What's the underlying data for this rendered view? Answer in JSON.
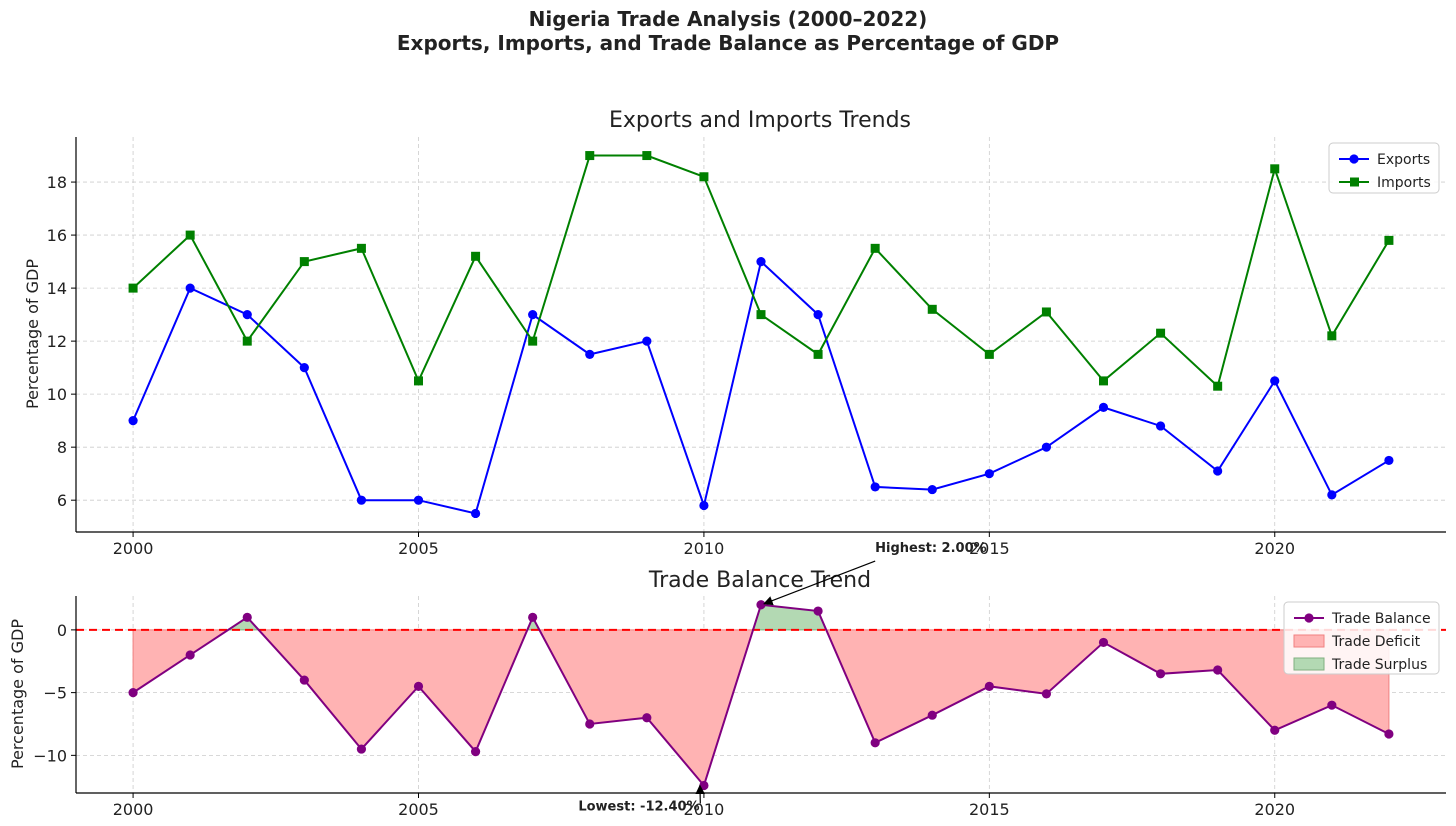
{
  "figure": {
    "title_line1": "Nigeria Trade Analysis (2000–2022)",
    "title_line2": "Exports, Imports, and Trade Balance as Percentage of GDP"
  },
  "chart_data": [
    {
      "type": "line",
      "title": "Exports and Imports Trends",
      "xlabel": "",
      "ylabel": "Percentage of GDP",
      "x": [
        2000,
        2001,
        2002,
        2003,
        2004,
        2005,
        2006,
        2007,
        2008,
        2009,
        2010,
        2011,
        2012,
        2013,
        2014,
        2015,
        2016,
        2017,
        2018,
        2019,
        2020,
        2021,
        2022
      ],
      "xlim": [
        1999,
        2023
      ],
      "ylim": [
        4.8,
        19.7
      ],
      "xticks": [
        2000,
        2005,
        2010,
        2015,
        2020
      ],
      "yticks": [
        6,
        8,
        10,
        12,
        14,
        16,
        18
      ],
      "grid": true,
      "legend_position": "top-right",
      "series": [
        {
          "name": "Exports",
          "color": "#0000ff",
          "marker": "circle",
          "values": [
            9.0,
            14.0,
            13.0,
            11.0,
            6.0,
            6.0,
            5.5,
            13.0,
            11.5,
            12.0,
            5.8,
            15.0,
            13.0,
            6.5,
            6.4,
            7.0,
            8.0,
            9.5,
            8.8,
            7.1,
            10.5,
            6.2,
            7.5
          ]
        },
        {
          "name": "Imports",
          "color": "#008000",
          "marker": "square",
          "values": [
            14.0,
            16.0,
            12.0,
            15.0,
            15.5,
            10.5,
            15.2,
            12.0,
            19.0,
            19.0,
            18.2,
            13.0,
            11.5,
            15.5,
            13.2,
            11.5,
            13.1,
            10.5,
            12.3,
            10.3,
            18.5,
            12.2,
            15.8
          ]
        }
      ]
    },
    {
      "type": "area",
      "title": "Trade Balance Trend",
      "xlabel": "",
      "ylabel": "Percentage of GDP",
      "x": [
        2000,
        2001,
        2002,
        2003,
        2004,
        2005,
        2006,
        2007,
        2008,
        2009,
        2010,
        2011,
        2012,
        2013,
        2014,
        2015,
        2016,
        2017,
        2018,
        2019,
        2020,
        2021,
        2022
      ],
      "xlim": [
        1999,
        2023
      ],
      "ylim": [
        -13.0,
        2.7
      ],
      "xticks": [
        2000,
        2005,
        2010,
        2015,
        2020
      ],
      "yticks": [
        0,
        -5,
        -10
      ],
      "ytick_labels": [
        "0",
        "−5",
        "−10"
      ],
      "grid": true,
      "legend_position": "top-right",
      "reference_line": {
        "y": 0,
        "color": "#ff0000",
        "style": "dashed"
      },
      "series": [
        {
          "name": "Trade Balance",
          "color": "#800080",
          "marker": "circle",
          "values": [
            -5.0,
            -2.0,
            1.0,
            -4.0,
            -9.5,
            -4.5,
            -9.7,
            1.0,
            -7.5,
            -7.0,
            -12.4,
            2.0,
            1.5,
            -9.0,
            -6.8,
            -4.5,
            -5.1,
            -1.0,
            -3.5,
            -3.2,
            -8.0,
            -6.0,
            -8.3
          ]
        }
      ],
      "fills": [
        {
          "name": "Trade Deficit",
          "color": "#ffb3b3",
          "edge": "#f08080"
        },
        {
          "name": "Trade Surplus",
          "color": "#b3d9b3",
          "edge": "#80b080"
        }
      ],
      "annotations": [
        {
          "text": "Highest: 2.00%",
          "x": 2011,
          "y": 2.0
        },
        {
          "text": "Lowest: -12.40%",
          "x": 2010,
          "y": -12.4
        }
      ]
    }
  ]
}
